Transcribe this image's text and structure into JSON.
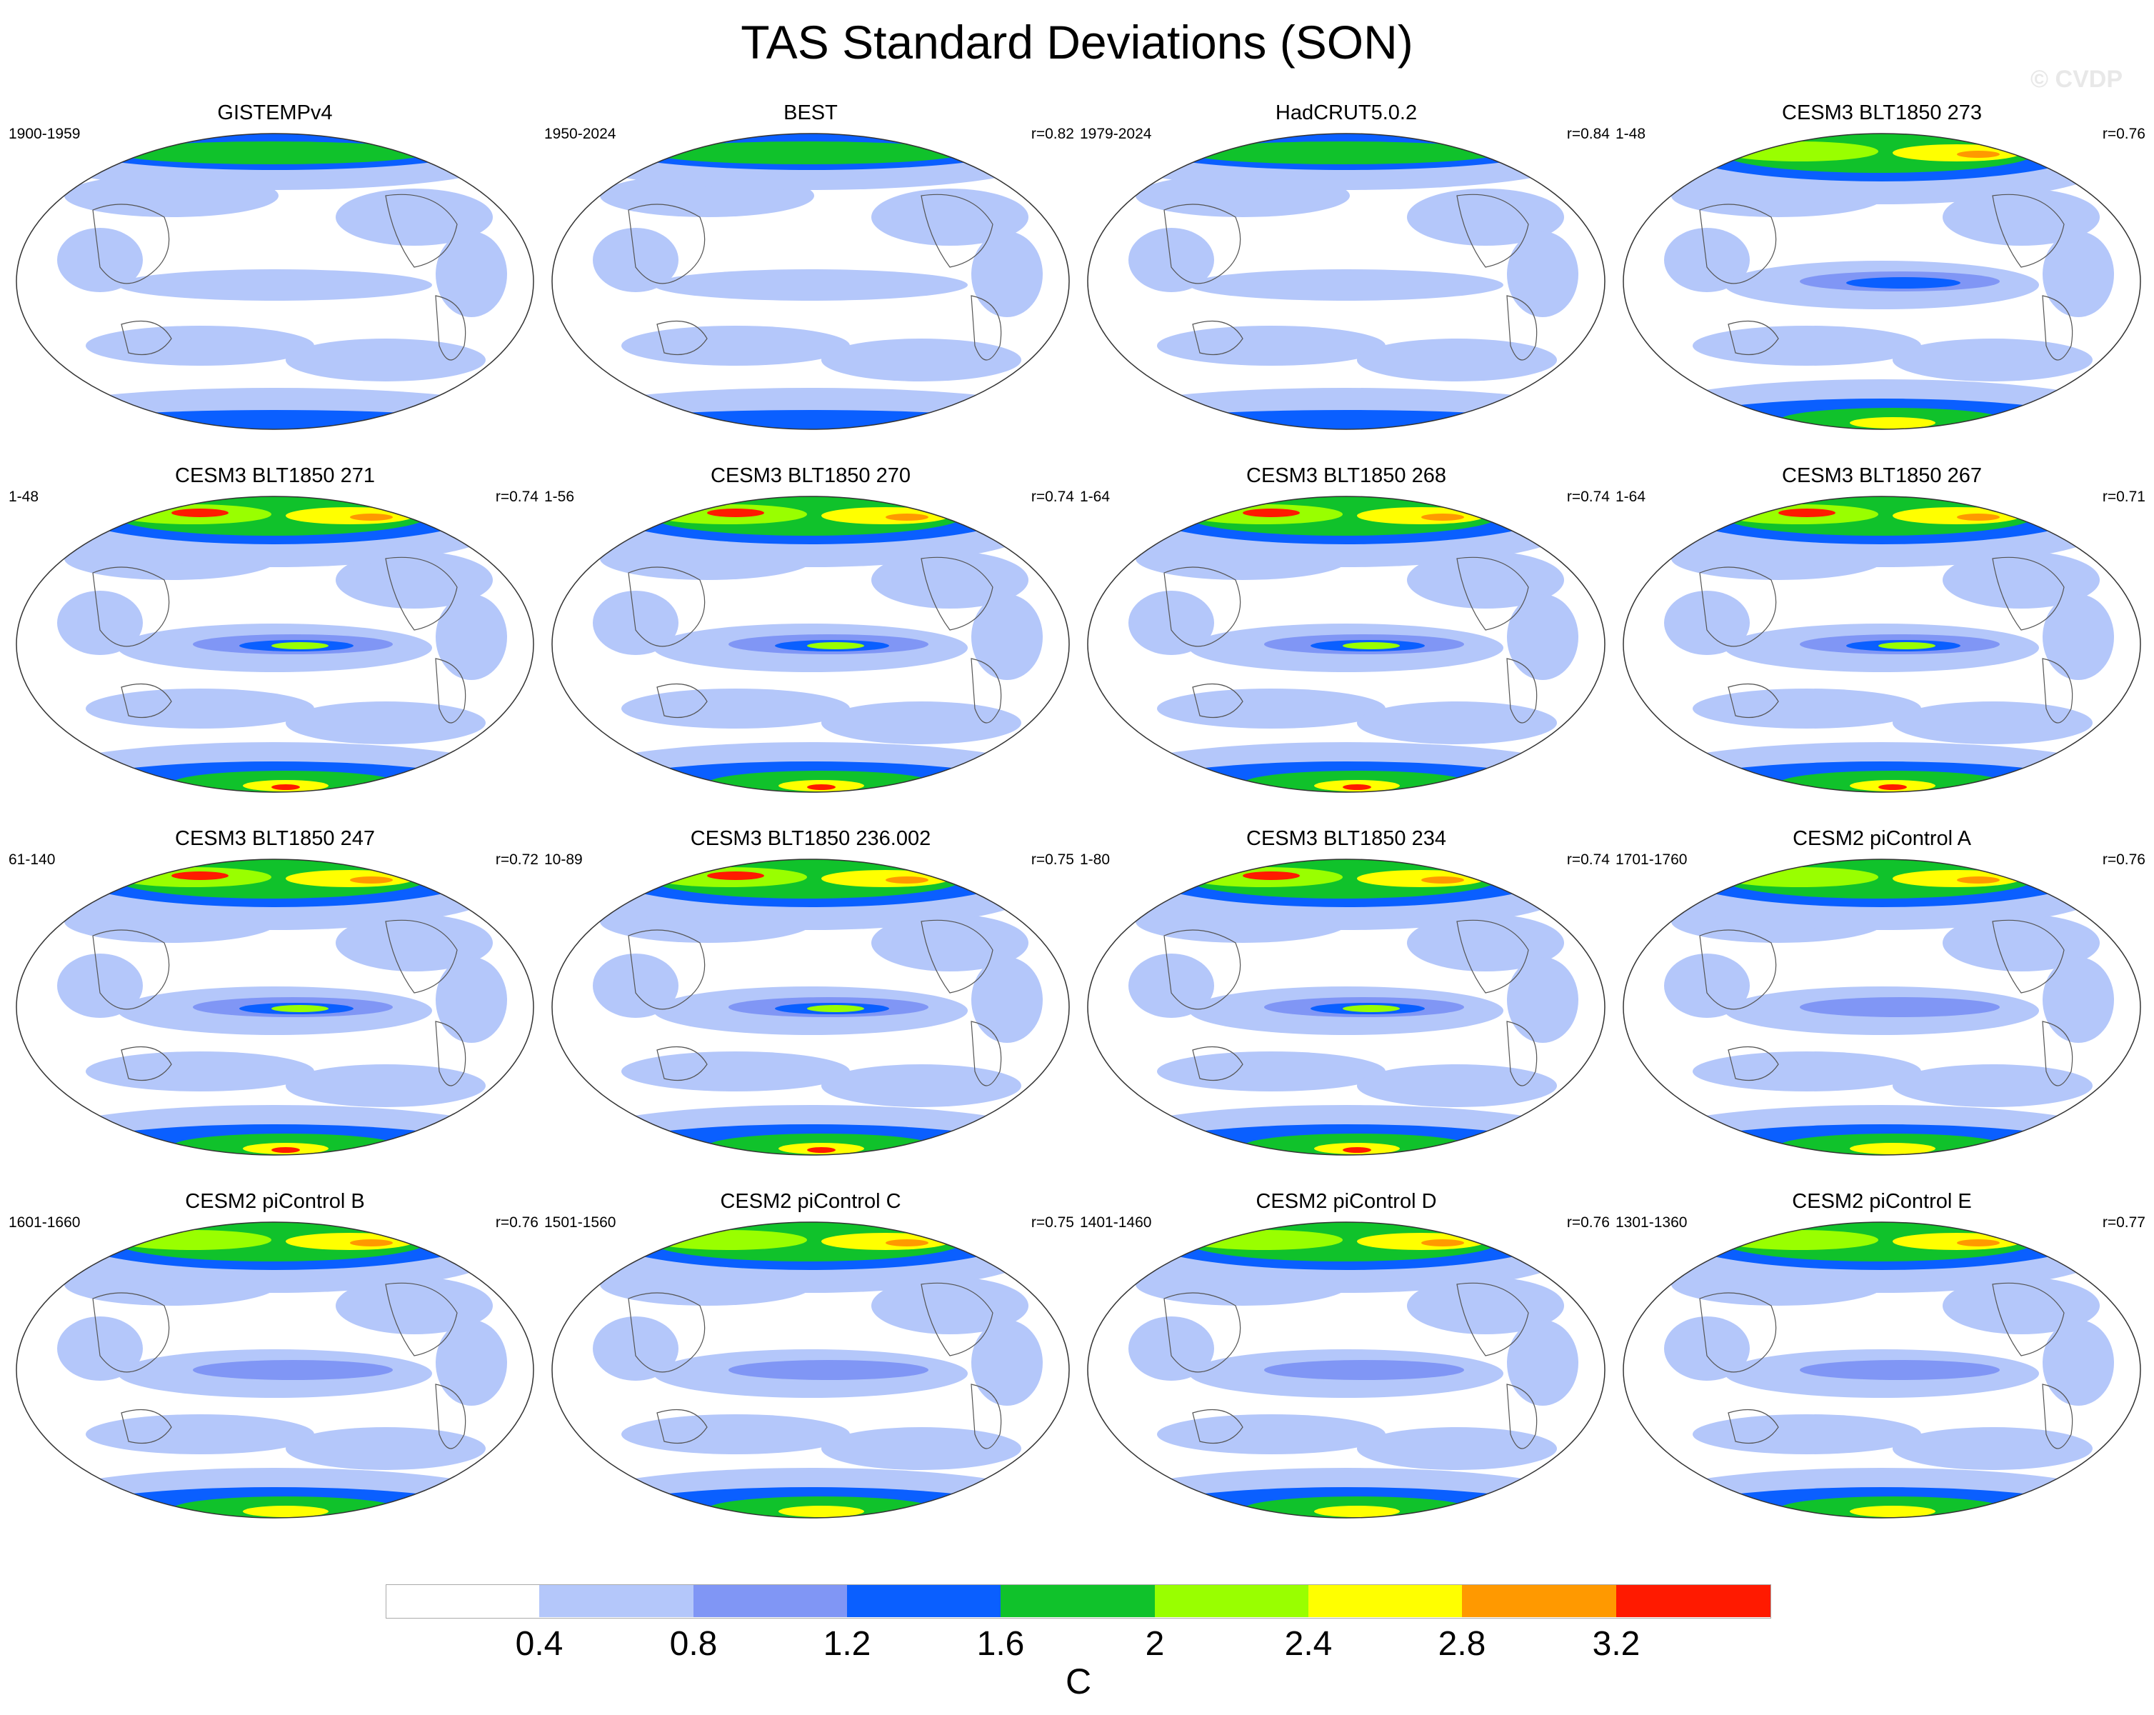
{
  "title": "TAS Standard Deviations (SON)",
  "watermark": "© CVDP",
  "colorbar": {
    "levels": [
      "0.4",
      "0.8",
      "1.2",
      "1.6",
      "2",
      "2.4",
      "2.8",
      "3.2"
    ],
    "colors": [
      "#ffffff",
      "#b4c7fa",
      "#8096f5",
      "#0a5fff",
      "#10c22b",
      "#99ff00",
      "#ffff00",
      "#ff9900",
      "#ff1a00"
    ],
    "units": "C"
  },
  "panels": [
    {
      "name": "GISTEMPv4",
      "period": "1900-1959",
      "r": "",
      "level": 0.5
    },
    {
      "name": "BEST",
      "period": "1950-2024",
      "r": "r=0.82",
      "level": 0.65
    },
    {
      "name": "HadCRUT5.0.2",
      "period": "1979-2024",
      "r": "r=0.84",
      "level": 0.6
    },
    {
      "name": "CESM3 BLT1850 273",
      "period": "1-48",
      "r": "r=0.76",
      "level": 0.95
    },
    {
      "name": "CESM3 BLT1850 271",
      "period": "1-48",
      "r": "r=0.74",
      "level": 1
    },
    {
      "name": "CESM3 BLT1850 270",
      "period": "1-56",
      "r": "r=0.74",
      "level": 1
    },
    {
      "name": "CESM3 BLT1850 268",
      "period": "1-64",
      "r": "r=0.74",
      "level": 1
    },
    {
      "name": "CESM3 BLT1850 267",
      "period": "1-64",
      "r": "r=0.71",
      "level": 1
    },
    {
      "name": "CESM3 BLT1850 247",
      "period": "61-140",
      "r": "r=0.72",
      "level": 1
    },
    {
      "name": "CESM3 BLT1850 236.002",
      "period": "10-89",
      "r": "r=0.75",
      "level": 1
    },
    {
      "name": "CESM3 BLT1850 234",
      "period": "1-80",
      "r": "r=0.74",
      "level": 1
    },
    {
      "name": "CESM2 piControl A",
      "period": "1701-1760",
      "r": "r=0.76",
      "level": 0.85
    },
    {
      "name": "CESM2 piControl B",
      "period": "1601-1660",
      "r": "r=0.76",
      "level": 0.85
    },
    {
      "name": "CESM2 piControl C",
      "period": "1501-1560",
      "r": "r=0.75",
      "level": 0.85
    },
    {
      "name": "CESM2 piControl D",
      "period": "1401-1460",
      "r": "r=0.76",
      "level": 0.85
    },
    {
      "name": "CESM2 piControl E",
      "period": "1301-1360",
      "r": "r=0.77",
      "level": 0.85
    }
  ]
}
